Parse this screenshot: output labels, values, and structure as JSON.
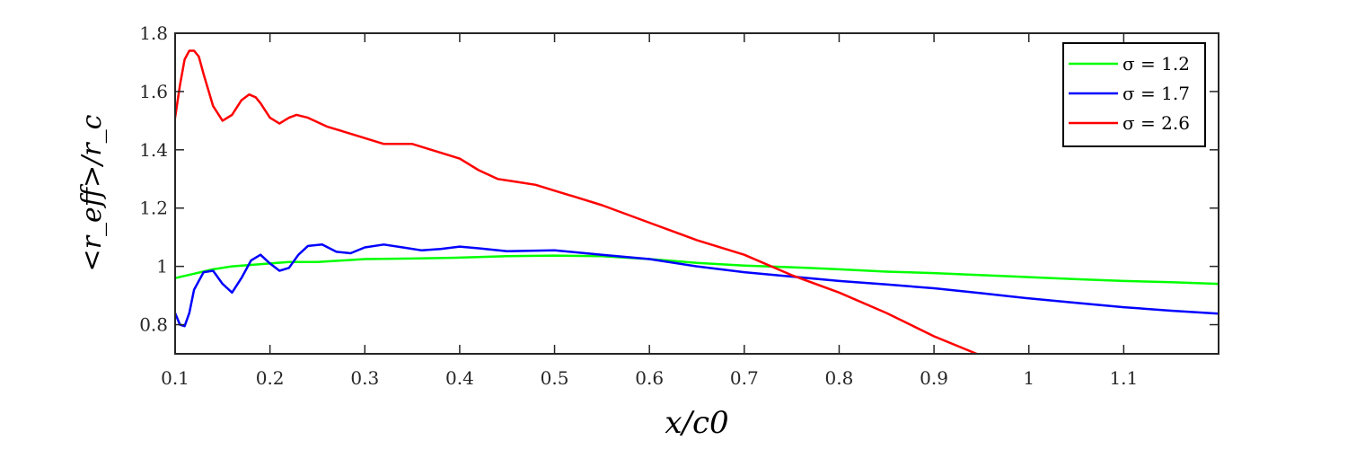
{
  "chart_data": {
    "type": "line",
    "title": "",
    "xlabel": "x/c0",
    "ylabel": "<r_eff>/r_c",
    "xlim": [
      0.1,
      1.2
    ],
    "ylim": [
      0.7,
      1.8
    ],
    "xticks": [
      0.1,
      0.2,
      0.3,
      0.4,
      0.5,
      0.6,
      0.7,
      0.8,
      0.9,
      1,
      1.1
    ],
    "xtick_labels": [
      "0.1",
      "0.2",
      "0.3",
      "0.4",
      "0.5",
      "0.6",
      "0.7",
      "0.8",
      "0.9",
      "1",
      "1.1"
    ],
    "yticks": [
      0.8,
      1,
      1.2,
      1.4,
      1.6,
      1.8
    ],
    "ytick_labels": [
      "0.8",
      "1",
      "1.2",
      "1.4",
      "1.6",
      "1.8"
    ],
    "grid": false,
    "legend_position": "top-right",
    "series": [
      {
        "name": "σ = 1.2",
        "color": "#00ff00",
        "x": [
          0.1,
          0.12,
          0.14,
          0.16,
          0.18,
          0.2,
          0.22,
          0.25,
          0.3,
          0.35,
          0.4,
          0.45,
          0.5,
          0.55,
          0.6,
          0.65,
          0.7,
          0.75,
          0.8,
          0.85,
          0.9,
          0.95,
          1.0,
          1.05,
          1.1,
          1.15,
          1.2
        ],
        "y": [
          0.96,
          0.975,
          0.99,
          1.0,
          1.005,
          1.01,
          1.015,
          1.015,
          1.025,
          1.027,
          1.03,
          1.035,
          1.037,
          1.035,
          1.025,
          1.012,
          1.003,
          0.997,
          0.99,
          0.982,
          0.977,
          0.97,
          0.963,
          0.956,
          0.95,
          0.946,
          0.94
        ]
      },
      {
        "name": "σ = 1.7",
        "color": "#0000ff",
        "x": [
          0.1,
          0.105,
          0.11,
          0.115,
          0.12,
          0.13,
          0.14,
          0.15,
          0.16,
          0.17,
          0.18,
          0.19,
          0.2,
          0.21,
          0.22,
          0.23,
          0.24,
          0.255,
          0.27,
          0.285,
          0.3,
          0.32,
          0.34,
          0.36,
          0.38,
          0.4,
          0.42,
          0.45,
          0.5,
          0.55,
          0.6,
          0.65,
          0.7,
          0.75,
          0.8,
          0.85,
          0.9,
          0.95,
          1.0,
          1.05,
          1.1,
          1.15,
          1.2
        ],
        "y": [
          0.84,
          0.8,
          0.795,
          0.84,
          0.92,
          0.98,
          0.985,
          0.94,
          0.91,
          0.96,
          1.02,
          1.04,
          1.01,
          0.985,
          0.995,
          1.04,
          1.07,
          1.075,
          1.05,
          1.045,
          1.065,
          1.075,
          1.065,
          1.055,
          1.06,
          1.068,
          1.062,
          1.052,
          1.055,
          1.04,
          1.025,
          1.0,
          0.98,
          0.965,
          0.95,
          0.938,
          0.925,
          0.908,
          0.89,
          0.875,
          0.86,
          0.848,
          0.838
        ]
      },
      {
        "name": "σ = 2.6",
        "color": "#ff0000",
        "x": [
          0.1,
          0.105,
          0.11,
          0.115,
          0.12,
          0.125,
          0.13,
          0.14,
          0.15,
          0.16,
          0.17,
          0.178,
          0.185,
          0.19,
          0.2,
          0.21,
          0.22,
          0.228,
          0.24,
          0.26,
          0.28,
          0.3,
          0.32,
          0.35,
          0.38,
          0.4,
          0.42,
          0.44,
          0.46,
          0.48,
          0.5,
          0.52,
          0.55,
          0.6,
          0.65,
          0.7,
          0.75,
          0.8,
          0.85,
          0.9,
          0.945
        ],
        "y": [
          1.51,
          1.62,
          1.71,
          1.74,
          1.74,
          1.72,
          1.66,
          1.55,
          1.5,
          1.52,
          1.57,
          1.59,
          1.58,
          1.56,
          1.51,
          1.49,
          1.51,
          1.52,
          1.51,
          1.48,
          1.46,
          1.44,
          1.42,
          1.42,
          1.39,
          1.37,
          1.33,
          1.3,
          1.29,
          1.28,
          1.26,
          1.24,
          1.21,
          1.15,
          1.09,
          1.04,
          0.97,
          0.91,
          0.84,
          0.76,
          0.7
        ]
      }
    ]
  }
}
